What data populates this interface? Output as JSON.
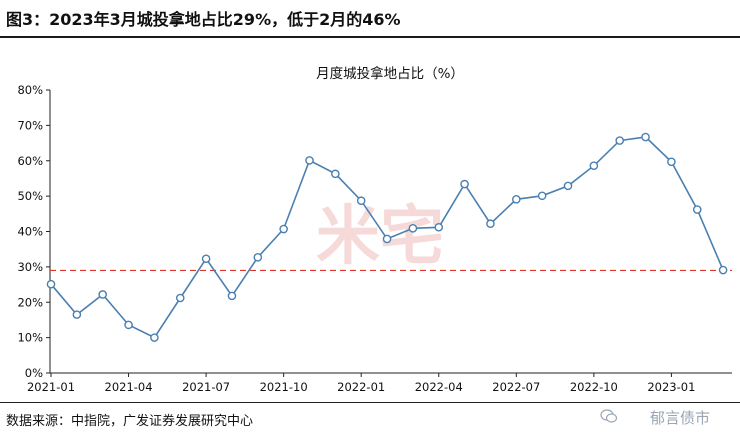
{
  "header": {
    "figure_title": "图3：2023年3月城投拿地占比29%，低于2月的46%"
  },
  "footer": {
    "source": "数据来源：中指院，广发证券发展研究中心",
    "brand": "郁言债市",
    "brand_icon": "wechat-icon"
  },
  "watermark": {
    "text": "米宅",
    "color": "#f6dada"
  },
  "colors": {
    "line": "#4a7fb0",
    "marker_fill": "#ffffff",
    "reference_line": "#d9352b"
  },
  "chart_data": {
    "type": "line",
    "title": "月度城投拿地占比（%）",
    "xlabel": "",
    "ylabel": "",
    "ylim": [
      0,
      80
    ],
    "yticks": [
      0,
      10,
      20,
      30,
      40,
      50,
      60,
      70,
      80
    ],
    "ytick_labels": [
      "0%",
      "10%",
      "20%",
      "30%",
      "40%",
      "50%",
      "60%",
      "70%",
      "80%"
    ],
    "xtick_labels": [
      "2021-01",
      "2021-04",
      "2021-07",
      "2021-10",
      "2022-01",
      "2022-04",
      "2022-07",
      "2022-10",
      "2023-01"
    ],
    "xtick_indices": [
      0,
      3,
      6,
      9,
      12,
      15,
      18,
      21,
      24
    ],
    "grid": false,
    "legend": "none",
    "series": [
      {
        "values": [
          25.1,
          16.5,
          22.2,
          13.6,
          10.0,
          21.2,
          32.3,
          21.8,
          32.7,
          40.7,
          60.1,
          56.3,
          48.7,
          37.9,
          40.9,
          41.2,
          53.4,
          42.2,
          49.1,
          50.1,
          52.9,
          58.6,
          65.7,
          66.7,
          59.7,
          46.2,
          29.1
        ]
      }
    ],
    "reference_lines": [
      {
        "y": 29,
        "style": "dashed"
      }
    ]
  }
}
